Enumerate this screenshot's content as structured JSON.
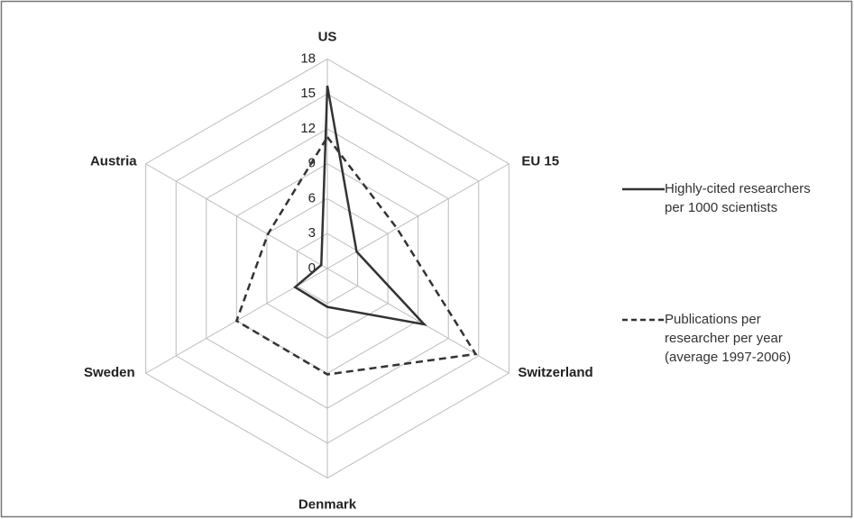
{
  "chart_data": {
    "type": "radar",
    "categories": [
      "US",
      "EU 15",
      "Switzerland",
      "Denmark",
      "Sweden",
      "Austria"
    ],
    "series": [
      {
        "name": "Highly-cited researchers per 1000 scientists",
        "color": "#333333",
        "dash": "solid",
        "values": [
          15.7,
          2.9,
          9.6,
          3.3,
          3.2,
          0.6
        ]
      },
      {
        "name": "Publications per researcher per year (average 1997-2006)",
        "color": "#333333",
        "dash": "dashed",
        "values": [
          11.3,
          6.9,
          14.7,
          9.1,
          9.0,
          5.9
        ]
      }
    ],
    "rlim": [
      0,
      18
    ],
    "rticks": [
      0,
      3,
      6,
      9,
      12,
      15,
      18
    ],
    "grid": true,
    "legend": "right"
  }
}
